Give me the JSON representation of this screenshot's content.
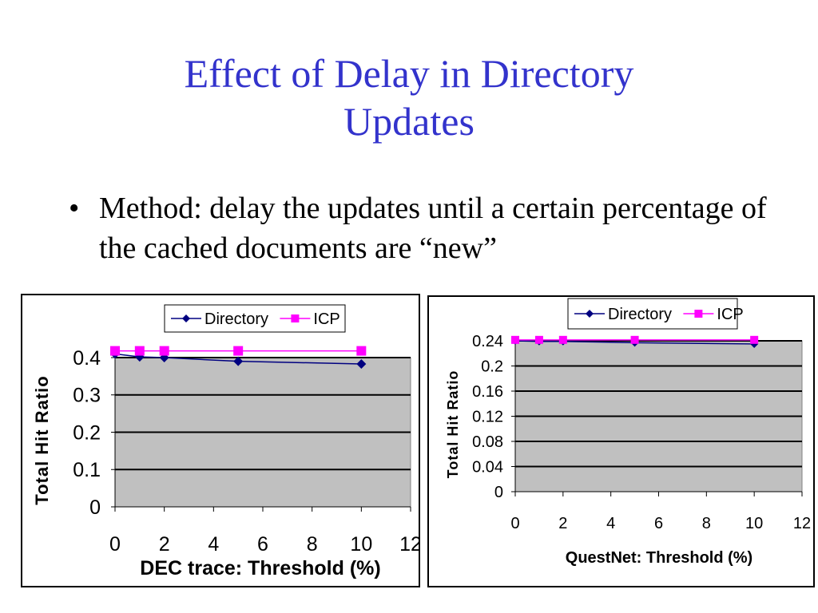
{
  "slide": {
    "title_line1": "Effect of Delay in Directory",
    "title_line2": "Updates",
    "bullet_symbol": "•",
    "bullet_text": "Method: delay the updates until a certain percentage of the cached documents are “new”"
  },
  "colors": {
    "title": "#3333cc",
    "plot_bg": "#c0c0c0",
    "directory": "#000080",
    "icp": "#ff00ff"
  },
  "chart_data": [
    {
      "type": "line",
      "xlabel": "DEC trace:  Threshold (%)",
      "ylabel": "Total Hit Ratio",
      "xlim": [
        0,
        12
      ],
      "ylim": [
        0,
        0.4
      ],
      "xticks": [
        "0",
        "2",
        "4",
        "6",
        "8",
        "10",
        "12"
      ],
      "yticks": [
        "0",
        "0.1",
        "0.2",
        "0.3",
        "0.4"
      ],
      "grid": true,
      "legend": "top-center",
      "series": [
        {
          "name": "Directory",
          "marker": "diamond",
          "x": [
            0,
            1,
            2,
            5,
            10
          ],
          "y": [
            0.41,
            0.402,
            0.4,
            0.39,
            0.383
          ]
        },
        {
          "name": "ICP",
          "marker": "square",
          "x": [
            0,
            1,
            2,
            5,
            10
          ],
          "y": [
            0.418,
            0.418,
            0.418,
            0.418,
            0.418
          ]
        }
      ]
    },
    {
      "type": "line",
      "xlabel": "QuestNet: Threshold (%)",
      "ylabel": "Total Hit Ratio",
      "xlim": [
        0,
        12
      ],
      "ylim": [
        0,
        0.24
      ],
      "xticks": [
        "0",
        "2",
        "4",
        "6",
        "8",
        "10",
        "12"
      ],
      "yticks": [
        "0",
        "0.04",
        "0.08",
        "0.12",
        "0.16",
        "0.2",
        "0.24"
      ],
      "grid": true,
      "legend": "top-center",
      "series": [
        {
          "name": "Directory",
          "marker": "diamond",
          "x": [
            0,
            1,
            2,
            5,
            10
          ],
          "y": [
            0.24,
            0.239,
            0.239,
            0.237,
            0.235
          ]
        },
        {
          "name": "ICP",
          "marker": "square",
          "x": [
            0,
            1,
            2,
            5,
            10
          ],
          "y": [
            0.2415,
            0.2415,
            0.2415,
            0.2415,
            0.2415
          ]
        }
      ]
    }
  ]
}
